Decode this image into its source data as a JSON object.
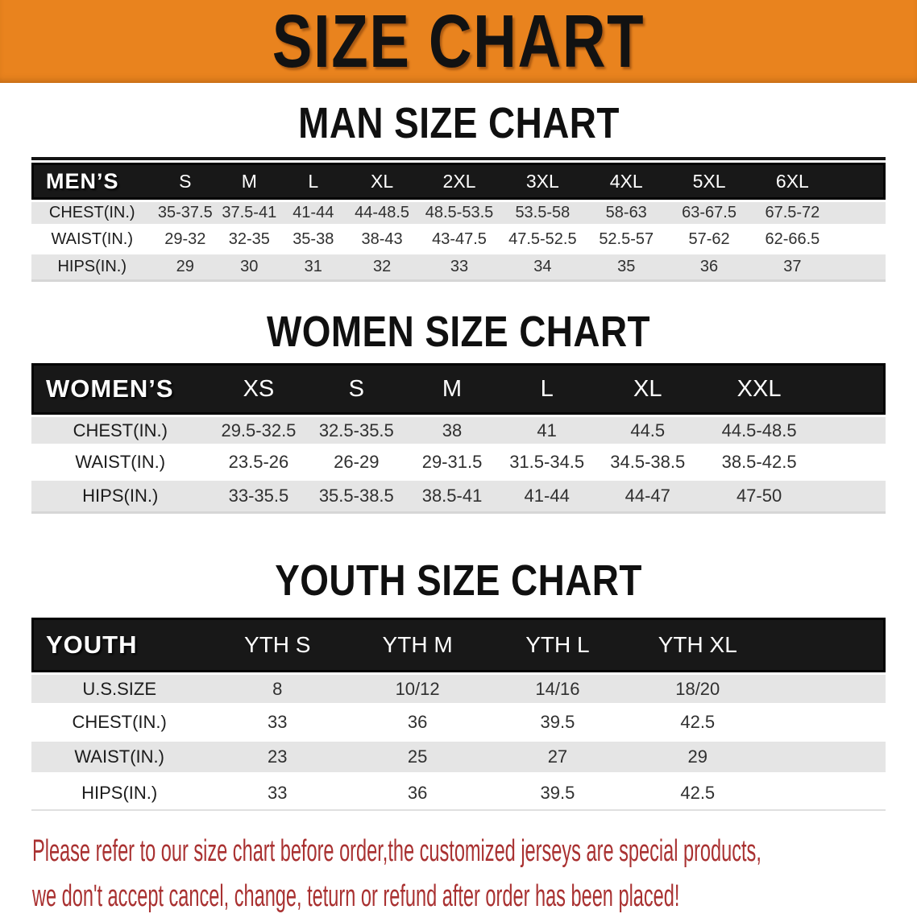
{
  "banner": {
    "title": "SIZE CHART",
    "bg_color": "#e9831e",
    "text_color": "#121212"
  },
  "sections": [
    {
      "id": "men",
      "heading": "MAN SIZE CHART",
      "table": {
        "header_label": "MEN’S",
        "columns": [
          "S",
          "M",
          "L",
          "XL",
          "2XL",
          "3XL",
          "4XL",
          "5XL",
          "6XL"
        ],
        "rows": [
          {
            "label": "CHEST(IN.)",
            "values": [
              "35-37.5",
              "37.5-41",
              "41-44",
              "44-48.5",
              "48.5-53.5",
              "53.5-58",
              "58-63",
              "63-67.5",
              "67.5-72"
            ]
          },
          {
            "label": "WAIST(IN.)",
            "values": [
              "29-32",
              "32-35",
              "35-38",
              "38-43",
              "43-47.5",
              "47.5-52.5",
              "52.5-57",
              "57-62",
              "62-66.5"
            ]
          },
          {
            "label": "HIPS(IN.)",
            "values": [
              "29",
              "30",
              "31",
              "32",
              "33",
              "34",
              "35",
              "36",
              "37"
            ]
          }
        ]
      }
    },
    {
      "id": "women",
      "heading": "WOMEN SIZE CHART",
      "table": {
        "header_label": "WOMEN’S",
        "columns": [
          "XS",
          "S",
          "M",
          "L",
          "XL",
          "XXL"
        ],
        "rows": [
          {
            "label": "CHEST(IN.)",
            "values": [
              "29.5-32.5",
              "32.5-35.5",
              "38",
              "41",
              "44.5",
              "44.5-48.5"
            ]
          },
          {
            "label": "WAIST(IN.)",
            "values": [
              "23.5-26",
              "26-29",
              "29-31.5",
              "31.5-34.5",
              "34.5-38.5",
              "38.5-42.5"
            ]
          },
          {
            "label": "HIPS(IN.)",
            "values": [
              "33-35.5",
              "35.5-38.5",
              "38.5-41",
              "41-44",
              "44-47",
              "47-50"
            ]
          }
        ]
      }
    },
    {
      "id": "youth",
      "heading": "YOUTH SIZE CHART",
      "table": {
        "header_label": "YOUTH",
        "columns": [
          "YTH S",
          "YTH M",
          "YTH L",
          "YTH XL"
        ],
        "rows": [
          {
            "label": "U.S.SIZE",
            "values": [
              "8",
              "10/12",
              "14/16",
              "18/20"
            ]
          },
          {
            "label": "CHEST(IN.)",
            "values": [
              "33",
              "36",
              "39.5",
              "42.5"
            ]
          },
          {
            "label": "WAIST(IN.)",
            "values": [
              "23",
              "25",
              "27",
              "29"
            ]
          },
          {
            "label": "HIPS(IN.)",
            "values": [
              "33",
              "36",
              "39.5",
              "42.5"
            ]
          }
        ]
      }
    }
  ],
  "footer": {
    "line1": "Please refer to our size chart before order,the customized jerseys are special products,",
    "line2": "we don't accept cancel, change, teturn or refund after order has been placed!",
    "text_color": "#a93131"
  }
}
